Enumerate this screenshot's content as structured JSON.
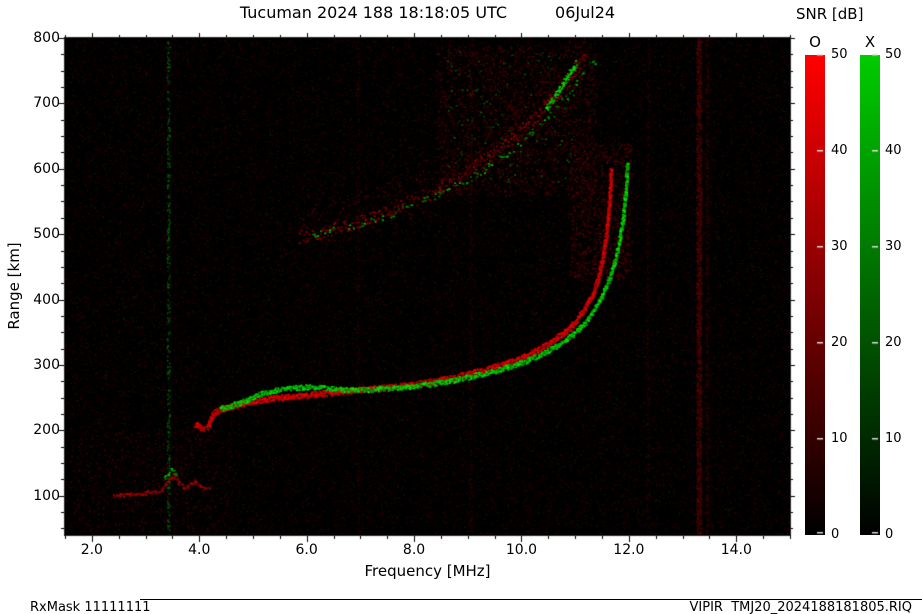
{
  "header": {
    "title_main": "Tucuman 2024 188 18:18:05 UTC",
    "title_date": "06Jul24"
  },
  "footer": {
    "rxmask": "RxMask 11111111",
    "file": "VIPIR  TMJ20_2024188181805.RIQ"
  },
  "colorbar": {
    "title": "SNR [dB]",
    "o_label": "O",
    "x_label": "X",
    "ticks": [
      0,
      10,
      20,
      30,
      40,
      50
    ],
    "o_color": "#ff0000",
    "x_color": "#00cc00",
    "min": 0,
    "max": 50
  },
  "chart_data": {
    "type": "heatmap",
    "subtype": "ionogram",
    "title": "Tucuman 2024 188 18:18:05 UTC 06Jul24",
    "xlabel": "Frequency [MHz]",
    "ylabel": "Range [km]",
    "xlim": [
      1.5,
      15.0
    ],
    "ylim": [
      40,
      800
    ],
    "x_major_ticks": [
      2,
      4,
      6,
      8,
      10,
      12,
      14
    ],
    "x_tick_labels": [
      "2.0",
      "4.0",
      "6.0",
      "8.0",
      "10.0",
      "12.0",
      "14.0"
    ],
    "x_minor_step": 0.5,
    "y_major_ticks": [
      100,
      200,
      300,
      400,
      500,
      600,
      700,
      800
    ],
    "y_minor_step": 25,
    "background": "#000000",
    "grid": false,
    "noise": {
      "red_count": 26000,
      "red_v": [
        12,
        55
      ],
      "green_count": 2600,
      "green_v": [
        12,
        50
      ]
    },
    "series": [
      {
        "name": "E-layer trace O-mode",
        "color": "r",
        "width": 4,
        "v": [
          90,
          200
        ],
        "density": 2,
        "prob": 1,
        "points": [
          [
            2.4,
            101
          ],
          [
            2.62,
            102
          ],
          [
            2.85,
            104
          ],
          [
            3.1,
            106
          ],
          [
            3.3,
            109
          ],
          [
            3.42,
            124
          ],
          [
            3.52,
            132
          ],
          [
            3.6,
            121
          ],
          [
            3.7,
            113
          ],
          [
            3.8,
            116
          ],
          [
            3.9,
            123
          ],
          [
            4.0,
            116
          ],
          [
            4.1,
            111
          ],
          [
            4.2,
            110
          ]
        ]
      },
      {
        "name": "E-layer trace X-mode",
        "color": "g",
        "width": 4,
        "v": [
          90,
          210
        ],
        "density": 2,
        "prob": 0.8,
        "points": [
          [
            3.36,
            128
          ],
          [
            3.48,
            140
          ],
          [
            3.6,
            131
          ]
        ]
      },
      {
        "name": "F-layer trace O-mode",
        "color": "r",
        "width": 6,
        "v": [
          150,
          255
        ],
        "density": 5,
        "prob": 1,
        "points": [
          [
            3.92,
            210
          ],
          [
            4.0,
            205
          ],
          [
            4.08,
            204
          ],
          [
            4.16,
            207
          ],
          [
            4.24,
            226
          ],
          [
            4.35,
            231
          ],
          [
            4.5,
            235
          ],
          [
            4.7,
            240
          ],
          [
            4.95,
            245
          ],
          [
            5.25,
            249
          ],
          [
            5.6,
            252
          ],
          [
            6.0,
            255
          ],
          [
            6.4,
            258
          ],
          [
            6.8,
            261
          ],
          [
            7.2,
            264
          ],
          [
            7.6,
            267
          ],
          [
            8.0,
            271
          ],
          [
            8.4,
            276
          ],
          [
            8.8,
            283
          ],
          [
            9.2,
            291
          ],
          [
            9.6,
            300
          ],
          [
            10.0,
            312
          ],
          [
            10.3,
            324
          ],
          [
            10.6,
            339
          ],
          [
            10.9,
            358
          ],
          [
            11.1,
            378
          ],
          [
            11.3,
            405
          ],
          [
            11.42,
            432
          ],
          [
            11.5,
            462
          ],
          [
            11.56,
            495
          ],
          [
            11.61,
            532
          ],
          [
            11.64,
            568
          ],
          [
            11.66,
            600
          ]
        ]
      },
      {
        "name": "F-layer trace X-mode",
        "color": "g",
        "width": 5,
        "v": [
          130,
          255
        ],
        "density": 4,
        "prob": 1,
        "points": [
          [
            4.4,
            234
          ],
          [
            4.6,
            239
          ],
          [
            4.85,
            246
          ],
          [
            5.15,
            257
          ],
          [
            5.45,
            263
          ],
          [
            5.75,
            266
          ],
          [
            6.05,
            267
          ],
          [
            6.4,
            265
          ],
          [
            6.75,
            263
          ],
          [
            7.15,
            263
          ],
          [
            7.55,
            265
          ],
          [
            7.95,
            268
          ],
          [
            8.35,
            272
          ],
          [
            8.75,
            278
          ],
          [
            9.15,
            285
          ],
          [
            9.55,
            293
          ],
          [
            9.95,
            303
          ],
          [
            10.35,
            316
          ],
          [
            10.65,
            330
          ],
          [
            10.95,
            347
          ],
          [
            11.2,
            368
          ],
          [
            11.4,
            392
          ],
          [
            11.58,
            422
          ],
          [
            11.72,
            456
          ],
          [
            11.82,
            492
          ],
          [
            11.89,
            530
          ],
          [
            11.93,
            568
          ],
          [
            11.96,
            610
          ]
        ]
      },
      {
        "name": "F-layer second hop O-mode",
        "color": "r",
        "width": 13,
        "v": [
          55,
          165
        ],
        "density": 2,
        "prob": 0.9,
        "points": [
          [
            5.85,
            497
          ],
          [
            6.15,
            502
          ],
          [
            6.45,
            508
          ],
          [
            6.85,
            517
          ],
          [
            7.25,
            528
          ],
          [
            7.65,
            540
          ],
          [
            8.05,
            554
          ],
          [
            8.45,
            570
          ],
          [
            8.85,
            589
          ],
          [
            9.25,
            611
          ],
          [
            9.65,
            635
          ],
          [
            10.0,
            660
          ],
          [
            10.3,
            684
          ],
          [
            10.6,
            710
          ],
          [
            10.85,
            736
          ],
          [
            11.05,
            760
          ],
          [
            11.2,
            778
          ]
        ]
      },
      {
        "name": "F-layer second hop spread O-mode",
        "color": "r",
        "width": 46,
        "v": [
          30,
          85
        ],
        "density": 3,
        "prob": 0.45,
        "dy": -18,
        "points": [
          [
            5.85,
            497
          ],
          [
            6.15,
            502
          ],
          [
            6.45,
            508
          ],
          [
            6.85,
            517
          ],
          [
            7.25,
            528
          ],
          [
            7.65,
            540
          ],
          [
            8.05,
            554
          ],
          [
            8.45,
            570
          ],
          [
            8.85,
            589
          ],
          [
            9.25,
            611
          ],
          [
            9.65,
            635
          ],
          [
            10.0,
            660
          ],
          [
            10.3,
            684
          ],
          [
            10.6,
            710
          ],
          [
            10.85,
            736
          ],
          [
            11.05,
            760
          ],
          [
            11.2,
            778
          ]
        ]
      },
      {
        "name": "F-layer second hop X-mode",
        "color": "g",
        "width": 7,
        "v": [
          70,
          210
        ],
        "density": 1,
        "prob": 0.5,
        "points": [
          [
            6.1,
            500
          ],
          [
            6.6,
            508
          ],
          [
            7.1,
            519
          ],
          [
            7.6,
            533
          ],
          [
            8.1,
            549
          ],
          [
            8.6,
            567
          ],
          [
            9.1,
            589
          ],
          [
            9.6,
            615
          ],
          [
            10.05,
            645
          ],
          [
            10.45,
            678
          ],
          [
            10.85,
            714
          ],
          [
            11.15,
            746
          ],
          [
            11.4,
            772
          ]
        ]
      },
      {
        "name": "second hop X-mode bright patch",
        "color": "g",
        "width": 6,
        "v": [
          150,
          255
        ],
        "density": 3,
        "prob": 0.8,
        "points": [
          [
            10.45,
            693
          ],
          [
            10.6,
            710
          ],
          [
            10.75,
            728
          ],
          [
            10.92,
            750
          ],
          [
            11.02,
            764
          ]
        ]
      }
    ],
    "clouds": [
      {
        "name": "spread-above-second-hop",
        "f1": 8.4,
        "f2": 11.4,
        "r1": 560,
        "r2": 790,
        "n": 1600,
        "color": "r",
        "v": [
          28,
          85
        ]
      },
      {
        "name": "spread-near-cusp",
        "f1": 10.9,
        "f2": 12.05,
        "r1": 430,
        "r2": 640,
        "n": 800,
        "color": "r",
        "v": [
          30,
          95
        ]
      },
      {
        "name": "green-speckle-upper",
        "f1": 8.6,
        "f2": 11.0,
        "r1": 580,
        "r2": 780,
        "n": 130,
        "color": "g",
        "v": [
          40,
          120
        ]
      },
      {
        "name": "lower-left-noise",
        "f1": 1.6,
        "f2": 4.6,
        "r1": 45,
        "r2": 200,
        "n": 500,
        "color": "r",
        "v": [
          25,
          70
        ]
      }
    ],
    "stripes": [
      {
        "f": 3.42,
        "color": "g",
        "n": 380,
        "w": 3,
        "v": [
          30,
          130
        ]
      },
      {
        "f": 13.3,
        "color": "r",
        "n": 1400,
        "w": 5,
        "v": [
          35,
          110
        ]
      },
      {
        "f": 13.45,
        "color": "r",
        "n": 400,
        "w": 3,
        "v": [
          25,
          70
        ]
      },
      {
        "f": 9.05,
        "color": "r",
        "n": 250,
        "w": 3,
        "v": [
          25,
          60
        ]
      },
      {
        "f": 6.95,
        "color": "r",
        "n": 200,
        "w": 3,
        "v": [
          25,
          55
        ]
      },
      {
        "f": 12.35,
        "color": "r",
        "n": 250,
        "w": 3,
        "v": [
          25,
          60
        ]
      }
    ]
  }
}
